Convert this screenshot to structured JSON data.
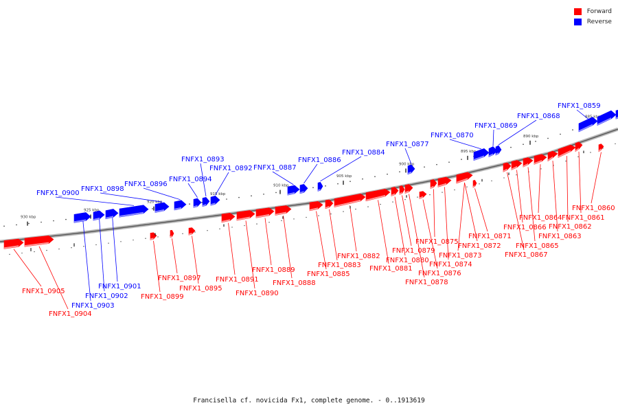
{
  "legend": {
    "forward_label": "Forward",
    "reverse_label": "Reverse",
    "forward_color": "#ff0000",
    "reverse_color": "#0000ff"
  },
  "caption": "Francisella cf. novicida Fx1, complete genome. - 0..1913619",
  "scale_ticks": [
    {
      "label": "930 kbp",
      "kbp": 930
    },
    {
      "label": "925 kbp",
      "kbp": 925
    },
    {
      "label": "920 kbp",
      "kbp": 920
    },
    {
      "label": "915 kbp",
      "kbp": 915
    },
    {
      "label": "910 kbp",
      "kbp": 910
    },
    {
      "label": "905 kbp",
      "kbp": 905
    },
    {
      "label": "900 kbp",
      "kbp": 900
    },
    {
      "label": "895 kbp",
      "kbp": 895
    },
    {
      "label": "890 kbp",
      "kbp": 890
    },
    {
      "label": "885 kbp",
      "kbp": 885
    }
  ],
  "genes": [
    {
      "name": "FNFX1_0905",
      "strand": "forward"
    },
    {
      "name": "FNFX1_0904",
      "strand": "forward"
    },
    {
      "name": "FNFX1_0903",
      "strand": "reverse"
    },
    {
      "name": "FNFX1_0902",
      "strand": "reverse"
    },
    {
      "name": "FNFX1_0901",
      "strand": "reverse"
    },
    {
      "name": "FNFX1_0900",
      "strand": "reverse"
    },
    {
      "name": "FNFX1_0899",
      "strand": "forward"
    },
    {
      "name": "FNFX1_0898",
      "strand": "reverse"
    },
    {
      "name": "FNFX1_0897",
      "strand": "forward"
    },
    {
      "name": "FNFX1_0896",
      "strand": "reverse"
    },
    {
      "name": "FNFX1_0895",
      "strand": "forward"
    },
    {
      "name": "FNFX1_0894",
      "strand": "reverse"
    },
    {
      "name": "FNFX1_0893",
      "strand": "reverse"
    },
    {
      "name": "FNFX1_0892",
      "strand": "reverse"
    },
    {
      "name": "FNFX1_0891",
      "strand": "forward"
    },
    {
      "name": "FNFX1_0890",
      "strand": "forward"
    },
    {
      "name": "FNFX1_0889",
      "strand": "forward"
    },
    {
      "name": "FNFX1_0888",
      "strand": "forward"
    },
    {
      "name": "FNFX1_0887",
      "strand": "reverse"
    },
    {
      "name": "FNFX1_0886",
      "strand": "reverse"
    },
    {
      "name": "FNFX1_0885",
      "strand": "forward"
    },
    {
      "name": "FNFX1_0884",
      "strand": "reverse"
    },
    {
      "name": "FNFX1_0883",
      "strand": "forward"
    },
    {
      "name": "FNFX1_0882",
      "strand": "forward"
    },
    {
      "name": "FNFX1_0881",
      "strand": "forward"
    },
    {
      "name": "FNFX1_0880",
      "strand": "forward"
    },
    {
      "name": "FNFX1_0879",
      "strand": "forward"
    },
    {
      "name": "FNFX1_0878",
      "strand": "forward"
    },
    {
      "name": "FNFX1_0877",
      "strand": "reverse"
    },
    {
      "name": "FNFX1_0876",
      "strand": "forward"
    },
    {
      "name": "FNFX1_0875",
      "strand": "forward"
    },
    {
      "name": "FNFX1_0874",
      "strand": "forward"
    },
    {
      "name": "FNFX1_0873",
      "strand": "forward"
    },
    {
      "name": "FNFX1_0872",
      "strand": "forward"
    },
    {
      "name": "FNFX1_0871",
      "strand": "forward"
    },
    {
      "name": "FNFX1_0870",
      "strand": "reverse"
    },
    {
      "name": "FNFX1_0869",
      "strand": "reverse"
    },
    {
      "name": "FNFX1_0868",
      "strand": "reverse"
    },
    {
      "name": "FNFX1_0867",
      "strand": "forward"
    },
    {
      "name": "FNFX1_0866",
      "strand": "forward"
    },
    {
      "name": "FNFX1_0865",
      "strand": "forward"
    },
    {
      "name": "FNFX1_0864",
      "strand": "forward"
    },
    {
      "name": "FNFX1_0863",
      "strand": "forward"
    },
    {
      "name": "FNFX1_0862",
      "strand": "forward"
    },
    {
      "name": "FNFX1_0861",
      "strand": "forward"
    },
    {
      "name": "FNFX1_0860",
      "strand": "forward"
    },
    {
      "name": "FNFX1_0859",
      "strand": "reverse"
    }
  ]
}
